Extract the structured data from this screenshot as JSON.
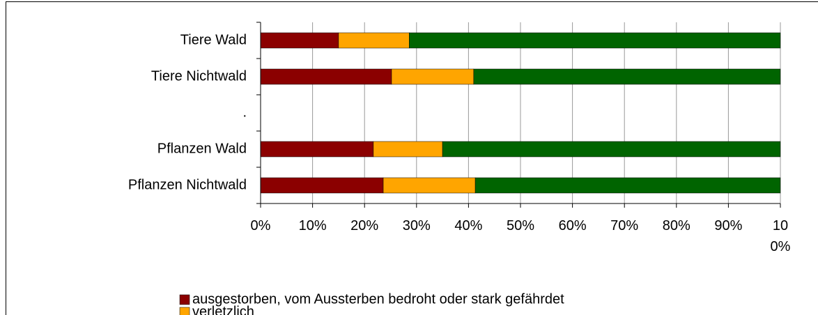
{
  "chart_data": {
    "type": "bar",
    "orientation": "horizontal",
    "stacked": true,
    "categories": [
      "Tiere Wald",
      "Tiere Nichtwald",
      ".",
      "Pflanzen Wald",
      "Pflanzen Nichtwald"
    ],
    "series": [
      {
        "name": "ausgestorben, vom Aussterben bedroht oder stark gefährdet",
        "color": "#8b0000",
        "values": [
          15.0,
          25.2,
          null,
          21.7,
          23.6
        ]
      },
      {
        "name": "verletzlich",
        "color": "#ffa500",
        "values": [
          13.6,
          15.8,
          null,
          13.3,
          17.7
        ]
      },
      {
        "color": "#006400",
        "values": [
          71.4,
          59.0,
          null,
          65.0,
          58.7
        ]
      }
    ],
    "xlim": [
      0,
      100
    ],
    "xticks": [
      {
        "value": 0,
        "label": "0%"
      },
      {
        "value": 10,
        "label": "10%"
      },
      {
        "value": 20,
        "label": "20%"
      },
      {
        "value": 30,
        "label": "30%"
      },
      {
        "value": 40,
        "label": "40%"
      },
      {
        "value": 50,
        "label": "50%"
      },
      {
        "value": 60,
        "label": "60%"
      },
      {
        "value": 70,
        "label": "70%"
      },
      {
        "value": 80,
        "label": "80%"
      },
      {
        "value": 90,
        "label": "90%"
      },
      {
        "value": 100,
        "label": "100%"
      }
    ],
    "grid": true
  }
}
